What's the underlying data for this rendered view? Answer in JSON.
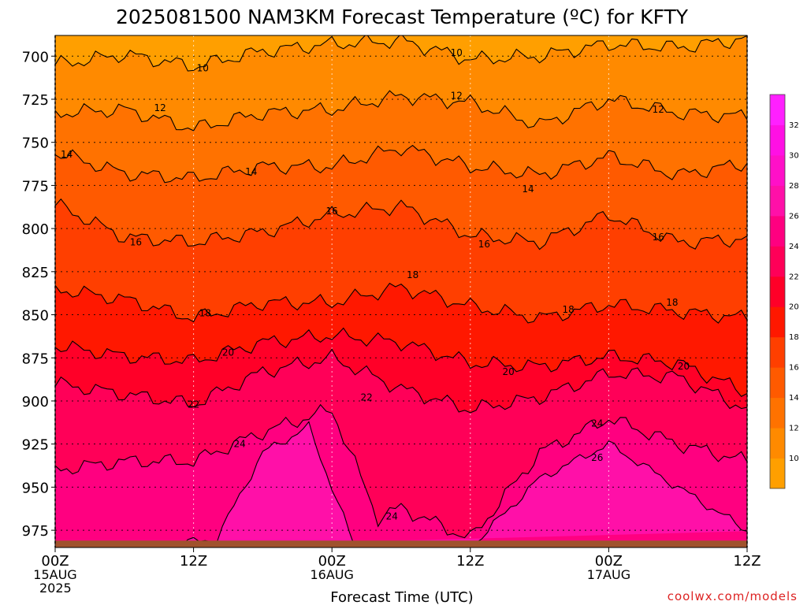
{
  "chart_data": {
    "type": "heatmap",
    "title": "2025081500 NAM3KM Forecast Temperature (ºC) for KFTY",
    "xlabel": "Forecast Time (UTC)",
    "credit": "coolwx.com/models",
    "x_ticks": [
      {
        "hour": 0,
        "line1": "00Z",
        "line2": "15AUG",
        "line3": "2025"
      },
      {
        "hour": 12,
        "line1": "12Z",
        "line2": "",
        "line3": ""
      },
      {
        "hour": 24,
        "line1": "00Z",
        "line2": "16AUG",
        "line3": ""
      },
      {
        "hour": 36,
        "line1": "12Z",
        "line2": "",
        "line3": ""
      },
      {
        "hour": 48,
        "line1": "00Z",
        "line2": "17AUG",
        "line3": ""
      },
      {
        "hour": 60,
        "line1": "12Z",
        "line2": "",
        "line3": ""
      }
    ],
    "xlim": [
      0,
      60
    ],
    "y_ticks": [
      700,
      725,
      750,
      775,
      800,
      825,
      850,
      875,
      900,
      925,
      950,
      975
    ],
    "ylim": [
      688,
      985
    ],
    "y_axis_note": "pressure (hPa), increasing downward",
    "surface_pressure_hPa": 981,
    "surface_color": "#a0522d",
    "grid": true,
    "colorbar": {
      "ticks": [
        10,
        12,
        14,
        16,
        18,
        20,
        22,
        24,
        26,
        28,
        30,
        32
      ],
      "range": [
        8,
        34
      ],
      "colors": [
        "#ff9f00",
        "#ff8a00",
        "#ff7200",
        "#ff5a00",
        "#ff3f00",
        "#ff1800",
        "#ff0028",
        "#ff0058",
        "#ff0080",
        "#ff10a8",
        "#ff10c8",
        "#ff10e4",
        "#ff20ff"
      ]
    },
    "contour_levels": [
      10,
      12,
      14,
      16,
      18,
      20,
      22,
      24,
      26
    ],
    "contours": [
      {
        "level": 10,
        "hours": [
          0,
          6,
          12,
          18,
          24,
          30,
          36,
          42,
          48,
          54,
          60
        ],
        "pressure": [
          705,
          699,
          706,
          697,
          693,
          691,
          702,
          700,
          693,
          695,
          690
        ]
      },
      {
        "level": 12,
        "hours": [
          0,
          6,
          12,
          18,
          24,
          30,
          36,
          42,
          48,
          54,
          60
        ],
        "pressure": [
          733,
          731,
          742,
          733,
          731,
          723,
          727,
          740,
          725,
          733,
          735
        ]
      },
      {
        "level": 14,
        "hours": [
          0,
          6,
          12,
          18,
          24,
          30,
          36,
          42,
          48,
          54,
          60
        ],
        "pressure": [
          756,
          768,
          771,
          764,
          764,
          753,
          764,
          769,
          758,
          769,
          762
        ]
      },
      {
        "level": 16,
        "hours": [
          0,
          6,
          12,
          18,
          24,
          30,
          36,
          42,
          48,
          54,
          60
        ],
        "pressure": [
          786,
          805,
          808,
          802,
          792,
          787,
          804,
          808,
          792,
          808,
          806
        ]
      },
      {
        "level": 18,
        "hours": [
          0,
          6,
          12,
          18,
          24,
          30,
          36,
          42,
          48,
          54,
          60
        ],
        "pressure": [
          835,
          841,
          852,
          843,
          843,
          834,
          845,
          852,
          844,
          848,
          852
        ]
      },
      {
        "level": 20,
        "hours": [
          0,
          6,
          12,
          18,
          24,
          30,
          36,
          42,
          48,
          54,
          60
        ],
        "pressure": [
          868,
          874,
          877,
          866,
          862,
          866,
          878,
          880,
          874,
          878,
          895
        ]
      },
      {
        "level": 22,
        "hours": [
          0,
          6,
          12,
          18,
          24,
          30,
          36,
          42,
          48,
          54,
          60
        ],
        "pressure": [
          890,
          896,
          902,
          883,
          875,
          893,
          905,
          898,
          884,
          886,
          905
        ]
      },
      {
        "level": 24,
        "hours": [
          0,
          6,
          12,
          18,
          24,
          28,
          30,
          36,
          42,
          48,
          54,
          60
        ],
        "pressure": [
          940,
          935,
          935,
          918,
          905,
          968,
          962,
          980,
          930,
          910,
          925,
          935
        ]
      },
      {
        "level": 26,
        "hours": [
          8,
          14,
          18,
          22,
          26,
          36,
          42,
          48,
          54,
          60
        ],
        "pressure": [
          985,
          980,
          930,
          915,
          985,
          985,
          945,
          925,
          950,
          975
        ]
      }
    ],
    "contour_labels": [
      {
        "text": "10",
        "hour": 12.8,
        "pressure": 707
      },
      {
        "text": "10",
        "hour": 34.8,
        "pressure": 698
      },
      {
        "text": "12",
        "hour": 9.1,
        "pressure": 730
      },
      {
        "text": "12",
        "hour": 34.8,
        "pressure": 723
      },
      {
        "text": "12",
        "hour": 52.3,
        "pressure": 731
      },
      {
        "text": "14",
        "hour": 1.0,
        "pressure": 757
      },
      {
        "text": "14",
        "hour": 17.0,
        "pressure": 767
      },
      {
        "text": "14",
        "hour": 41.0,
        "pressure": 777
      },
      {
        "text": "16",
        "hour": 7.0,
        "pressure": 808
      },
      {
        "text": "16",
        "hour": 24.0,
        "pressure": 790
      },
      {
        "text": "16",
        "hour": 37.2,
        "pressure": 809
      },
      {
        "text": "16",
        "hour": 52.3,
        "pressure": 805
      },
      {
        "text": "18",
        "hour": 13.0,
        "pressure": 849
      },
      {
        "text": "18",
        "hour": 31.0,
        "pressure": 827
      },
      {
        "text": "18",
        "hour": 44.5,
        "pressure": 847
      },
      {
        "text": "18",
        "hour": 53.5,
        "pressure": 843
      },
      {
        "text": "20",
        "hour": 15.0,
        "pressure": 872
      },
      {
        "text": "20",
        "hour": 39.3,
        "pressure": 883
      },
      {
        "text": "20",
        "hour": 54.5,
        "pressure": 880
      },
      {
        "text": "22",
        "hour": 12.0,
        "pressure": 902
      },
      {
        "text": "22",
        "hour": 27.0,
        "pressure": 898
      },
      {
        "text": "24",
        "hour": 16.0,
        "pressure": 925
      },
      {
        "text": "24",
        "hour": 29.2,
        "pressure": 967
      },
      {
        "text": "24",
        "hour": 47.0,
        "pressure": 913
      },
      {
        "text": "26",
        "hour": 47.0,
        "pressure": 933
      }
    ]
  }
}
